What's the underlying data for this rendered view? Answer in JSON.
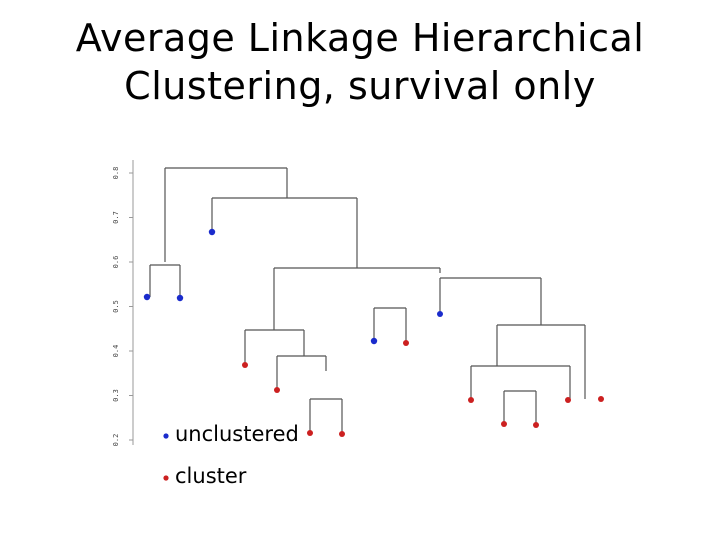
{
  "slide": {
    "title_line1": "Average Linkage Hierarchical",
    "title_line2": "Clustering, survival only"
  },
  "dendrogram": {
    "y_axis_ticks": [
      "0.2",
      "0.3",
      "0.4",
      "0.5",
      "0.6",
      "0.7",
      "0.8"
    ],
    "legend": [
      {
        "label": "unclustered",
        "color": "#1a2bcc"
      },
      {
        "label": "cluster",
        "color": "#cc2020"
      }
    ],
    "leaf_colors": [
      "blue",
      "blue",
      "blue",
      "red",
      "red",
      "red",
      "red",
      "blue",
      "red",
      "blue",
      "red",
      "red",
      "red",
      "red",
      "red"
    ]
  }
}
